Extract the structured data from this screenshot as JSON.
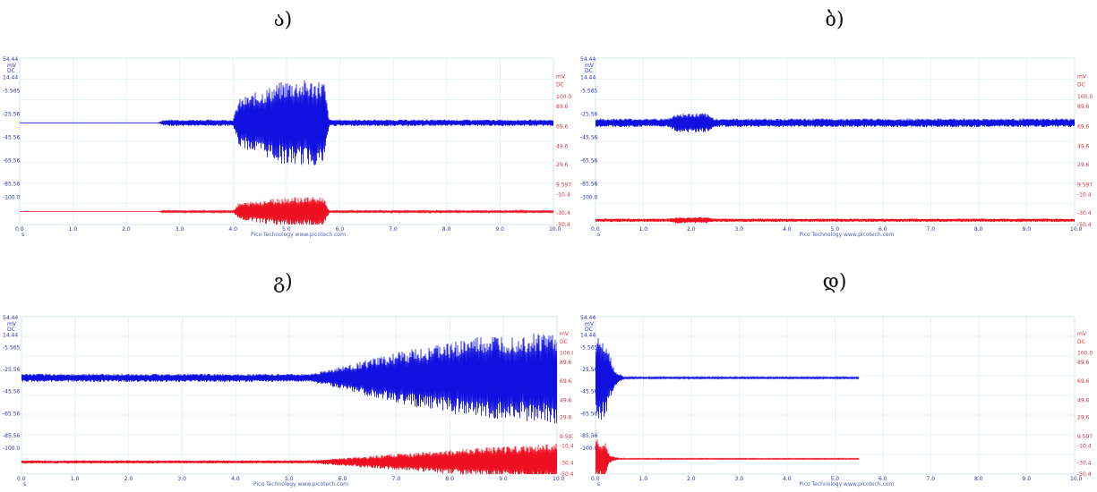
{
  "captions": [
    "ა)",
    "ბ)",
    "გ)",
    "დ)"
  ],
  "colors": {
    "channel_a": "#1010e0",
    "channel_b": "#ee1020",
    "grid": "#d4ecec",
    "axis_text": "#2b35b5",
    "right_axis_text": "#e0303a"
  },
  "axes": {
    "left_unit": "mV",
    "left_coupling": "DC",
    "left_ticks": [
      "54.44",
      "14.44",
      "-5.565",
      "-25.56",
      "-45.56",
      "-65.56",
      "-85.56",
      "-100.0"
    ],
    "right_unit": "mV",
    "right_coupling": "DC",
    "right_ticks": [
      "100.0",
      "89.6",
      "69.6",
      "49.6",
      "29.6",
      "9.597",
      "-10.4",
      "-30.4",
      "-50.4"
    ],
    "x_ticks": [
      "0.0",
      "1.0",
      "2.0",
      "3.0",
      "4.0",
      "5.0",
      "6.0",
      "7.0",
      "8.0",
      "9.0",
      "10.0"
    ],
    "x_unit": "s",
    "footer": "Pico Technology   www.picotech.com"
  },
  "chart_data": [
    {
      "type": "line",
      "caption": "ა)",
      "xlim": [
        0,
        10
      ],
      "ylim": [
        -100,
        54.44
      ],
      "grid": true,
      "series": [
        {
          "channel": "A",
          "color": "#1010e0",
          "baseline": -5.565,
          "envelope": {
            "x": [
              0,
              2.6,
              2.7,
              4.0,
              4.1,
              5.0,
              5.7,
              5.8,
              10.0
            ],
            "amplitude": [
              0,
              0,
              3,
              3,
              22,
              40,
              40,
              3,
              3
            ]
          }
        },
        {
          "channel": "B",
          "color": "#ee1020",
          "baseline": -88,
          "envelope": {
            "x": [
              0,
              2.6,
              2.7,
              4.0,
              4.1,
              5.0,
              5.7,
              5.8,
              10.0
            ],
            "amplitude": [
              0,
              0,
              1,
              1,
              8,
              14,
              14,
              1,
              1
            ]
          }
        }
      ]
    },
    {
      "type": "line",
      "caption": "ბ)",
      "xlim": [
        0,
        10
      ],
      "ylim": [
        -100,
        54.44
      ],
      "grid": true,
      "series": [
        {
          "channel": "A",
          "color": "#1010e0",
          "baseline": -5.565,
          "envelope": {
            "x": [
              0,
              1.5,
              1.7,
              2.3,
              2.5,
              10.0
            ],
            "amplitude": [
              4,
              4,
              9,
              9,
              4,
              4
            ]
          }
        },
        {
          "channel": "B",
          "color": "#ee1020",
          "baseline": -96,
          "envelope": {
            "x": [
              0,
              1.5,
              1.7,
              2.3,
              2.5,
              10.0
            ],
            "amplitude": [
              1.5,
              1.5,
              3,
              3,
              1.5,
              1.5
            ]
          }
        }
      ]
    },
    {
      "type": "line",
      "caption": "გ)",
      "xlim": [
        0,
        10
      ],
      "ylim": [
        -100,
        54.44
      ],
      "grid": true,
      "series": [
        {
          "channel": "A",
          "color": "#1010e0",
          "baseline": -5.565,
          "envelope": {
            "x": [
              0,
              5.4,
              5.8,
              7.0,
              8.5,
              10.0
            ],
            "amplitude": [
              4,
              4,
              9,
              25,
              40,
              45
            ]
          }
        },
        {
          "channel": "B",
          "color": "#ee1020",
          "baseline": -88,
          "envelope": {
            "x": [
              0,
              5.4,
              5.8,
              7.0,
              8.5,
              10.0
            ],
            "amplitude": [
              1.5,
              1.5,
              3,
              8,
              14,
              18
            ]
          }
        }
      ]
    },
    {
      "type": "line",
      "caption": "დ)",
      "xlim": [
        0,
        10
      ],
      "ylim": [
        -100,
        54.44
      ],
      "grid": true,
      "series": [
        {
          "channel": "A",
          "color": "#1010e0",
          "baseline": -5.565,
          "end_x": 5.5,
          "envelope": {
            "x": [
              0,
              0.2,
              0.4,
              0.6,
              5.5
            ],
            "amplitude": [
              45,
              40,
              8,
              0.8,
              0.8
            ]
          }
        },
        {
          "channel": "B",
          "color": "#ee1020",
          "baseline": -85,
          "end_x": 5.5,
          "envelope": {
            "x": [
              0,
              0.2,
              0.3,
              0.5,
              5.5
            ],
            "amplitude": [
              20,
              16,
              4,
              0.5,
              0.5
            ]
          }
        }
      ]
    }
  ]
}
